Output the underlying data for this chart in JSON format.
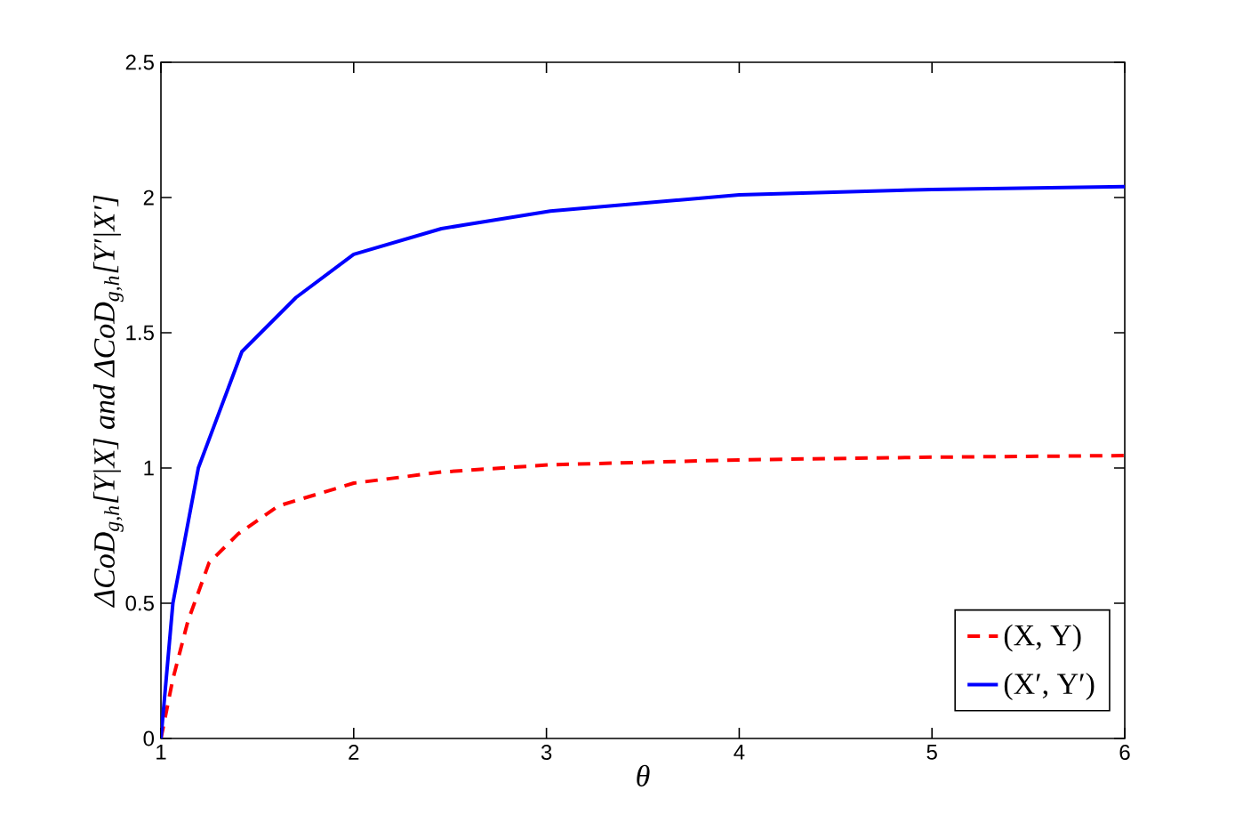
{
  "chart_data": {
    "type": "line",
    "xlabel": "θ",
    "ylabel": "ΔCoD$_{g,h}$[Y|X] and ΔCoD$_{g,h}$[Y′|X′]",
    "xlim": [
      1,
      6
    ],
    "ylim": [
      0,
      2.5
    ],
    "xticks": [
      1,
      2,
      3,
      4,
      5,
      6
    ],
    "yticks": [
      0,
      0.5,
      1,
      1.5,
      2,
      2.5
    ],
    "legend": "bottom right",
    "grid": false,
    "series": [
      {
        "name": "(X, Y)",
        "color": "#ff0000",
        "line_style": "dashed",
        "x": [
          1,
          1.062,
          1.14,
          1.25,
          1.4,
          1.61,
          2.0,
          2.455,
          3.02,
          4,
          5,
          6
        ],
        "values": [
          0,
          0.22,
          0.434,
          0.65,
          0.756,
          0.86,
          0.944,
          0.985,
          1.012,
          1.03,
          1.04,
          1.046
        ]
      },
      {
        "name": "(X′, Y′)",
        "color": "#0000ff",
        "line_style": "solid",
        "x": [
          1,
          1.062,
          1.194,
          1.42,
          1.7,
          2.0,
          2.455,
          3.02,
          4,
          5,
          6
        ],
        "values": [
          0,
          0.5,
          1.0,
          1.43,
          1.63,
          1.79,
          1.885,
          1.95,
          2.01,
          2.03,
          2.04
        ]
      }
    ]
  }
}
